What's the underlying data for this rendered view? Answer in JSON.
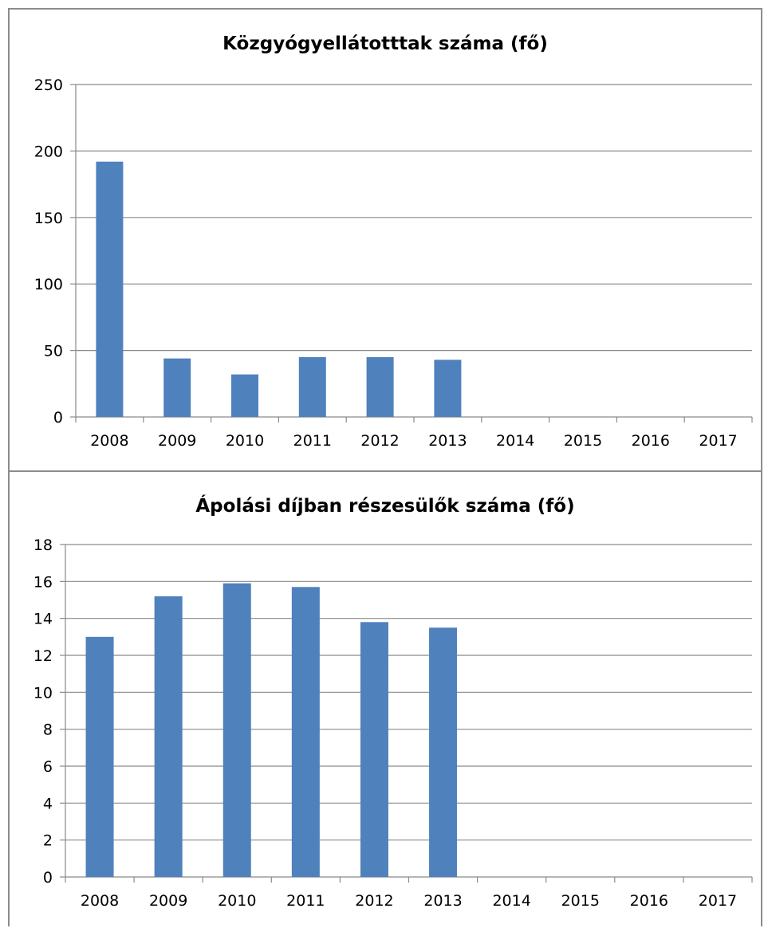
{
  "chart_data": [
    {
      "type": "bar",
      "title": "Közgyógyellátotttak száma (fő)",
      "categories": [
        "2008",
        "2009",
        "2010",
        "2011",
        "2012",
        "2013",
        "2014",
        "2015",
        "2016",
        "2017"
      ],
      "values": [
        192,
        44,
        32,
        45,
        45,
        43,
        null,
        null,
        null,
        null
      ],
      "ylim": [
        0,
        250
      ],
      "yticks": [
        "0",
        "50",
        "100",
        "150",
        "200",
        "250"
      ],
      "grid": true,
      "bar_color": "#4f81bd"
    },
    {
      "type": "bar",
      "title": "Ápolási díjban részesülők száma (fő)",
      "categories": [
        "2008",
        "2009",
        "2010",
        "2011",
        "2012",
        "2013",
        "2014",
        "2015",
        "2016",
        "2017"
      ],
      "values": [
        13,
        15.2,
        15.9,
        15.7,
        13.8,
        13.5,
        null,
        null,
        null,
        null
      ],
      "ylim": [
        0,
        18
      ],
      "yticks": [
        "0",
        "2",
        "4",
        "6",
        "8",
        "10",
        "12",
        "14",
        "16",
        "18"
      ],
      "grid": true,
      "bar_color": "#4f81bd"
    }
  ]
}
